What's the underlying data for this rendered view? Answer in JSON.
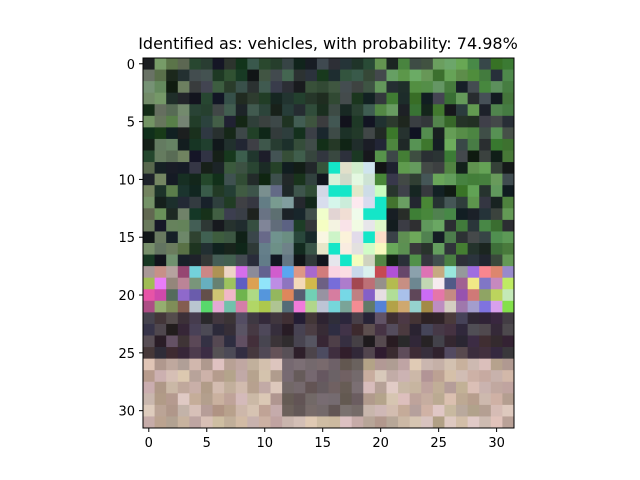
{
  "chart_data": {
    "type": "heatmap",
    "title": "Identified as: vehicles, with probability: 74.98%",
    "image_size": [
      32,
      32
    ],
    "x_ticks": [
      0,
      5,
      10,
      15,
      20,
      25,
      30
    ],
    "y_ticks": [
      0,
      5,
      10,
      15,
      20,
      25,
      30
    ],
    "xlim": [
      -0.5,
      31.5
    ],
    "ylim": [
      31.5,
      -0.5
    ],
    "grid": false,
    "legend": "none",
    "content": "32x32 low-resolution photo of a vehicle scene, dark upper background with green foliage, bright white object near center, colored car row around rows 19-21, beige road at bottom"
  }
}
